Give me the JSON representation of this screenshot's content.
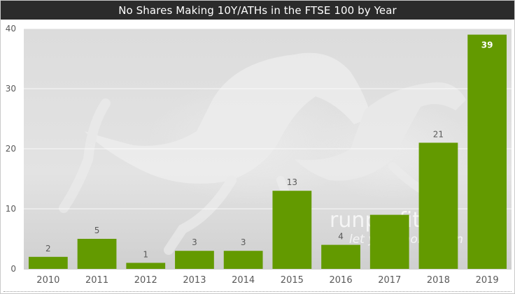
{
  "title": "No Shares Making 10Y/ATHs  in the FTSE 100 by Year",
  "watermark": {
    "main": "runprofit.co",
    "sub": "let your money run"
  },
  "colors": {
    "bar": "#639a00",
    "title_bg": "#2b2b2b",
    "plot_bg": "#e6e6e6",
    "grid": "#ffffff"
  },
  "chart_data": {
    "type": "bar",
    "title": "No Shares Making 10Y/ATHs  in the FTSE 100 by Year",
    "categories": [
      "2010",
      "2011",
      "2012",
      "2013",
      "2014",
      "2015",
      "2016",
      "2017",
      "2018",
      "2019"
    ],
    "values": [
      2,
      5,
      1,
      3,
      3,
      13,
      4,
      null,
      21,
      39
    ],
    "data_labels": [
      "2",
      "5",
      "1",
      "3",
      "3",
      "13",
      "4",
      "",
      "21",
      "39"
    ],
    "ylim": [
      0,
      40
    ],
    "yticks": [
      0,
      10,
      20,
      30,
      40
    ],
    "grid": true,
    "legend": "none"
  }
}
